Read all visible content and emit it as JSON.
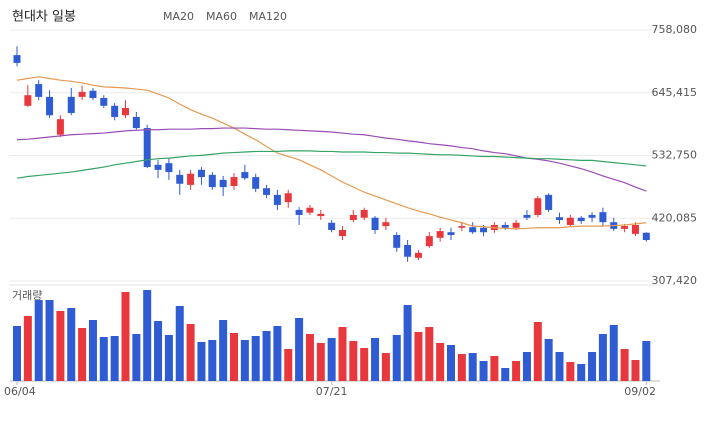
{
  "chart_data": {
    "type": "candlestick",
    "title": "현대차 일봉",
    "categories": [
      "06/04",
      null,
      null,
      null,
      null,
      null,
      null,
      null,
      null,
      null,
      null,
      null,
      null,
      null,
      null,
      null,
      null,
      null,
      null,
      null,
      null,
      null,
      null,
      null,
      null,
      null,
      null,
      null,
      null,
      "07/21",
      null,
      null,
      null,
      null,
      null,
      null,
      null,
      null,
      null,
      null,
      null,
      null,
      null,
      null,
      null,
      null,
      null,
      null,
      null,
      null,
      null,
      null,
      null,
      null,
      null,
      null,
      null,
      null,
      "09/02"
    ],
    "open": [
      713000,
      622000,
      661000,
      638000,
      570000,
      638000,
      638000,
      649000,
      636000,
      622000,
      605000,
      602000,
      582000,
      516000,
      519000,
      498000,
      480000,
      507000,
      498000,
      489000,
      478000,
      503000,
      494000,
      474000,
      462000,
      449000,
      435000,
      430000,
      424000,
      412000,
      388000,
      417000,
      421000,
      421000,
      406000,
      390000,
      372000,
      349000,
      370000,
      385000,
      395000,
      403000,
      404000,
      403000,
      399000,
      408000,
      403000,
      426000,
      426000,
      462000,
      422000,
      408000,
      421000,
      426000,
      431000,
      413000,
      401000,
      392000,
      394000
    ],
    "high": [
      729000,
      659000,
      668000,
      650000,
      605000,
      654000,
      658000,
      654000,
      641000,
      627000,
      632000,
      611000,
      588000,
      525000,
      528000,
      507000,
      507000,
      512000,
      503000,
      496000,
      501000,
      516000,
      500000,
      480000,
      471000,
      471000,
      440000,
      444000,
      435000,
      417000,
      406000,
      435000,
      439000,
      424000,
      421000,
      395000,
      381000,
      363000,
      395000,
      403000,
      403000,
      413000,
      413000,
      408000,
      413000,
      413000,
      417000,
      435000,
      460000,
      465000,
      430000,
      426000,
      424000,
      431000,
      439000,
      421000,
      410000,
      413000,
      395000
    ],
    "low": [
      693000,
      620000,
      632000,
      600000,
      566000,
      605000,
      632000,
      632000,
      618000,
      596000,
      600000,
      579000,
      510000,
      492000,
      489000,
      462000,
      471000,
      480000,
      471000,
      460000,
      471000,
      489000,
      467000,
      456000,
      435000,
      439000,
      408000,
      426000,
      417000,
      395000,
      381000,
      413000,
      417000,
      392000,
      399000,
      360000,
      342000,
      345000,
      367000,
      378000,
      381000,
      397000,
      392000,
      388000,
      394000,
      399000,
      399000,
      417000,
      422000,
      431000,
      410000,
      404000,
      410000,
      413000,
      406000,
      397000,
      395000,
      388000,
      378000
    ],
    "close": [
      699000,
      641000,
      638000,
      605000,
      598000,
      609000,
      647000,
      636000,
      622000,
      602000,
      618000,
      582000,
      512000,
      507000,
      503000,
      482000,
      500000,
      494000,
      476000,
      476000,
      494000,
      492000,
      473000,
      462000,
      444000,
      465000,
      426000,
      439000,
      428000,
      399000,
      399000,
      426000,
      435000,
      399000,
      413000,
      367000,
      351000,
      358000,
      388000,
      397000,
      390000,
      406000,
      395000,
      395000,
      408000,
      403000,
      412000,
      421000,
      456000,
      435000,
      417000,
      421000,
      415000,
      421000,
      413000,
      401000,
      406000,
      408000,
      381000
    ],
    "up_color": "#e8383d",
    "down_color": "#2f5bd3",
    "volume": {
      "label": "거래량",
      "values": [
        55,
        65,
        81,
        81,
        70,
        73,
        53,
        61,
        44,
        45,
        89,
        47,
        91,
        60,
        46,
        75,
        57,
        39,
        41,
        61,
        48,
        41,
        45,
        50,
        55,
        32,
        63,
        47,
        38,
        43,
        54,
        40,
        33,
        43,
        28,
        46,
        76,
        49,
        54,
        38,
        36,
        27,
        28,
        20,
        25,
        13,
        20,
        29,
        59,
        42,
        29,
        19,
        17,
        29,
        47,
        56,
        32,
        21,
        40
      ]
    },
    "series": [
      {
        "name": "MA20",
        "color": "#e59a52",
        "values": [
          668000,
          671000,
          674000,
          671000,
          668000,
          666000,
          663000,
          659000,
          656000,
          655000,
          654000,
          652000,
          650000,
          643000,
          636000,
          625000,
          615000,
          607000,
          600000,
          591000,
          582000,
          571000,
          561000,
          549000,
          537000,
          531000,
          525000,
          516000,
          507000,
          496000,
          485000,
          476000,
          467000,
          460000,
          453000,
          446000,
          439000,
          433000,
          428000,
          422000,
          417000,
          412000,
          406000,
          405000,
          403000,
          402000,
          401000,
          402000,
          403000,
          403000,
          403000,
          405000,
          406000,
          406000,
          406000,
          407000,
          408000,
          410000,
          412000
        ]
      },
      {
        "name": "MA60",
        "color": "#9a4cb5",
        "values": [
          561000,
          562000,
          564000,
          566000,
          568000,
          570000,
          571000,
          572000,
          573000,
          575000,
          577000,
          578000,
          579000,
          579000,
          580000,
          580000,
          580000,
          581000,
          581000,
          582000,
          582000,
          582000,
          581000,
          580000,
          580000,
          579000,
          578000,
          577000,
          576000,
          575000,
          573000,
          571000,
          570000,
          567000,
          564000,
          562000,
          559000,
          557000,
          554000,
          552000,
          550000,
          547000,
          545000,
          541000,
          538000,
          536000,
          532000,
          528000,
          526000,
          523000,
          519000,
          514000,
          509000,
          503000,
          496000,
          490000,
          484000,
          476000,
          469000
        ]
      },
      {
        "name": "MA120",
        "color": "#36a466",
        "values": [
          492000,
          495000,
          497000,
          499000,
          501000,
          503000,
          506000,
          509000,
          512000,
          516000,
          519000,
          522000,
          525000,
          527000,
          528000,
          530000,
          532000,
          533000,
          535000,
          537000,
          538000,
          539000,
          540000,
          540000,
          540000,
          541000,
          541000,
          541000,
          540000,
          540000,
          539000,
          539000,
          539000,
          538000,
          538000,
          537000,
          537000,
          536000,
          535000,
          534000,
          534000,
          533000,
          532000,
          531000,
          531000,
          530000,
          529000,
          528000,
          527000,
          527000,
          526000,
          525000,
          524000,
          524000,
          522000,
          520000,
          518000,
          516000,
          514000
        ]
      }
    ],
    "ylim": [
      307420,
      758080
    ],
    "yticks": [
      {
        "value": 758080,
        "label": "758,080"
      },
      {
        "value": 645415,
        "label": "645,415"
      },
      {
        "value": 532750,
        "label": "532,750"
      },
      {
        "value": 420085,
        "label": "420,085"
      },
      {
        "value": 307420,
        "label": "307,420"
      }
    ],
    "grid": true
  }
}
